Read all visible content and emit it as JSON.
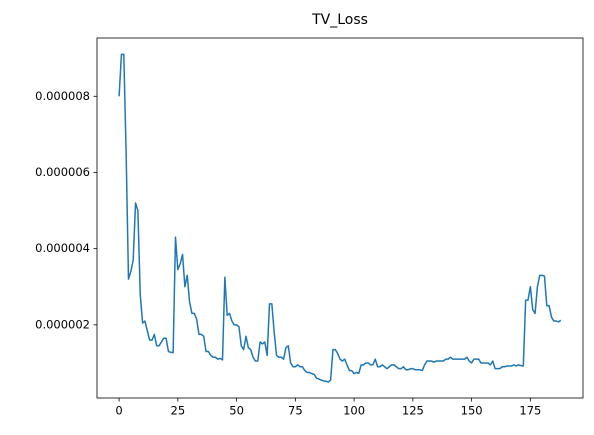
{
  "chart_data": {
    "type": "line",
    "title": "TV_Loss",
    "color": "#1f77b4",
    "x": [
      0,
      1,
      2,
      3,
      4,
      5,
      6,
      7,
      8,
      9,
      10,
      11,
      12,
      13,
      14,
      15,
      16,
      17,
      18,
      19,
      20,
      21,
      22,
      23,
      24,
      25,
      26,
      27,
      28,
      29,
      30,
      31,
      32,
      33,
      34,
      35,
      36,
      37,
      38,
      39,
      40,
      41,
      42,
      43,
      44,
      45,
      46,
      47,
      48,
      49,
      50,
      51,
      52,
      53,
      54,
      55,
      56,
      57,
      58,
      59,
      60,
      61,
      62,
      63,
      64,
      65,
      66,
      67,
      68,
      69,
      70,
      71,
      72,
      73,
      74,
      75,
      76,
      77,
      78,
      79,
      80,
      81,
      82,
      83,
      84,
      85,
      86,
      87,
      88,
      89,
      90,
      91,
      92,
      93,
      94,
      95,
      96,
      97,
      98,
      99,
      100,
      101,
      102,
      103,
      104,
      105,
      106,
      107,
      108,
      109,
      110,
      111,
      112,
      113,
      114,
      115,
      116,
      117,
      118,
      119,
      120,
      121,
      122,
      123,
      124,
      125,
      126,
      127,
      128,
      129,
      130,
      131,
      132,
      133,
      134,
      135,
      136,
      137,
      138,
      139,
      140,
      141,
      142,
      143,
      144,
      145,
      146,
      147,
      148,
      149,
      150,
      151,
      152,
      153,
      154,
      155,
      156,
      157,
      158,
      159,
      160,
      161,
      162,
      163,
      164,
      165,
      166,
      167,
      168,
      169,
      170,
      171,
      172,
      173,
      174,
      175,
      176,
      177,
      178,
      179,
      180,
      181,
      182,
      183,
      184,
      185,
      186,
      187,
      188
    ],
    "values": [
      8e-06,
      9.1e-06,
      9.1e-06,
      6.5e-06,
      3.2e-06,
      3.4e-06,
      3.7e-06,
      5.2e-06,
      5e-06,
      2.8e-06,
      2.05e-06,
      2.1e-06,
      1.85e-06,
      1.6e-06,
      1.6e-06,
      1.75e-06,
      1.45e-06,
      1.45e-06,
      1.55e-06,
      1.65e-06,
      1.65e-06,
      1.3e-06,
      1.28e-06,
      1.27e-06,
      4.3e-06,
      3.45e-06,
      3.6e-06,
      3.85e-06,
      3e-06,
      3.3e-06,
      2.6e-06,
      2.3e-06,
      2.3e-06,
      2.15e-06,
      1.75e-06,
      1.75e-06,
      1.7e-06,
      1.3e-06,
      1.3e-06,
      1.2e-06,
      1.15e-06,
      1.15e-06,
      1.1e-06,
      1.12e-06,
      1.08e-06,
      3.25e-06,
      2.25e-06,
      2.3e-06,
      2.1e-06,
      2e-06,
      2e-06,
      1.95e-06,
      1.45e-06,
      1.35e-06,
      1.7e-06,
      1.4e-06,
      1.35e-06,
      1.15e-06,
      1.05e-06,
      1.05e-06,
      1.55e-06,
      1.5e-06,
      1.55e-06,
      1.2e-06,
      2.55e-06,
      2.55e-06,
      1.8e-06,
      1.2e-06,
      1.15e-06,
      1.15e-06,
      1.1e-06,
      1.4e-06,
      1.45e-06,
      1e-06,
      9e-07,
      9e-07,
      9.5e-07,
      9e-07,
      9e-07,
      8e-07,
      7.5e-07,
      7.5e-07,
      7.2e-07,
      7e-07,
      6e-07,
      5.8e-07,
      5.5e-07,
      5.3e-07,
      5.2e-07,
      5e-07,
      5.5e-07,
      1.35e-06,
      1.35e-06,
      1.25e-06,
      1.1e-06,
      1.05e-06,
      1.1e-06,
      9.5e-07,
      8e-07,
      8e-07,
      7.2e-07,
      7.5e-07,
      7.3e-07,
      9.5e-07,
      9.5e-07,
      1e-06,
      1e-06,
      9.5e-07,
      9.5e-07,
      1.1e-06,
      9e-07,
      9e-07,
      9.5e-07,
      9e-07,
      8.5e-07,
      9e-07,
      9.5e-07,
      9.5e-07,
      9e-07,
      8.5e-07,
      8.5e-07,
      9e-07,
      8.2e-07,
      8.2e-07,
      8.5e-07,
      8.5e-07,
      8.2e-07,
      8.2e-07,
      8.2e-07,
      8e-07,
      9.5e-07,
      1.05e-06,
      1.05e-06,
      1.05e-06,
      1.02e-06,
      1.05e-06,
      1.05e-06,
      1.05e-06,
      1.05e-06,
      1.1e-06,
      1.1e-06,
      1.15e-06,
      1.1e-06,
      1.1e-06,
      1.1e-06,
      1.1e-06,
      1.1e-06,
      1.1e-06,
      1.15e-06,
      1.05e-06,
      1e-06,
      1.1e-06,
      1.1e-06,
      1.1e-06,
      1e-06,
      1e-06,
      1e-06,
      1e-06,
      9.5e-07,
      1.05e-06,
      8.5e-07,
      8.5e-07,
      8.5e-07,
      9e-07,
      9e-07,
      9.2e-07,
      9.2e-07,
      9.2e-07,
      9.5e-07,
      9.2e-07,
      9.5e-07,
      9.3e-07,
      9.2e-07,
      2.65e-06,
      2.65e-06,
      3e-06,
      2.4e-06,
      2.3e-06,
      3e-06,
      3.3e-06,
      3.3e-06,
      3.28e-06,
      2.5e-06,
      2.5e-06,
      2.2e-06,
      2.1e-06,
      2.1e-06,
      2.08e-06,
      2.12e-06
    ],
    "xlim": [
      -9.4,
      197.4
    ],
    "xticks": [
      0,
      25,
      50,
      75,
      100,
      125,
      150,
      175
    ],
    "ylim": [
      8e-08,
      9.53e-06
    ],
    "yticks": [
      2e-06,
      4e-06,
      6e-06,
      8e-06
    ]
  }
}
